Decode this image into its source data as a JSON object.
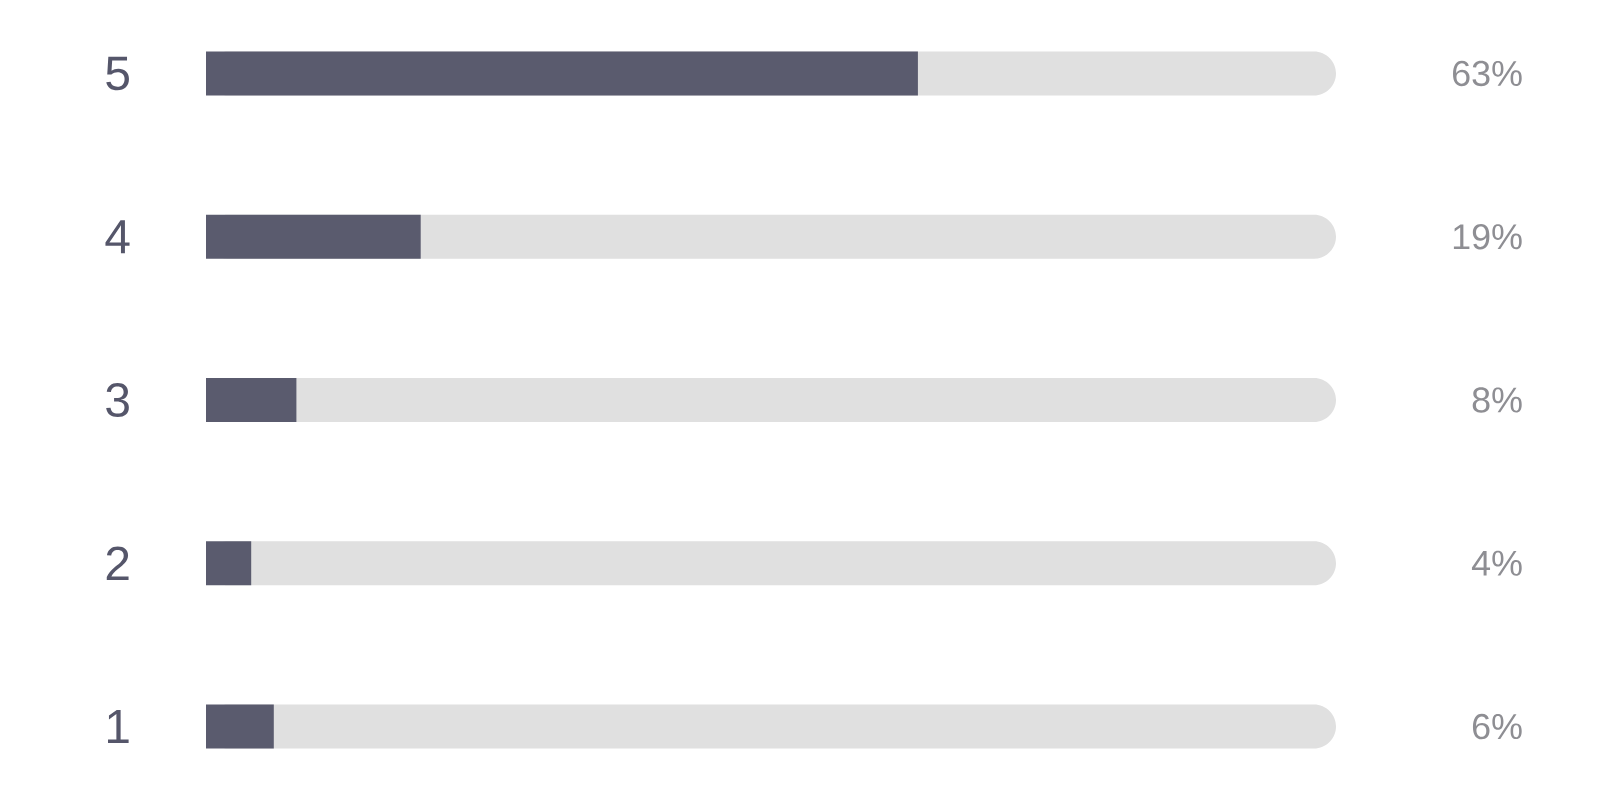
{
  "chart_data": {
    "type": "bar",
    "orientation": "horizontal",
    "categories": [
      "5",
      "4",
      "3",
      "2",
      "1"
    ],
    "values": [
      63,
      19,
      8,
      4,
      6
    ],
    "value_labels": [
      "63%",
      "19%",
      "8%",
      "4%",
      "6%"
    ],
    "color": "#5a5b6e",
    "xlim": [
      0,
      100
    ],
    "tick_labels": "y"
  }
}
